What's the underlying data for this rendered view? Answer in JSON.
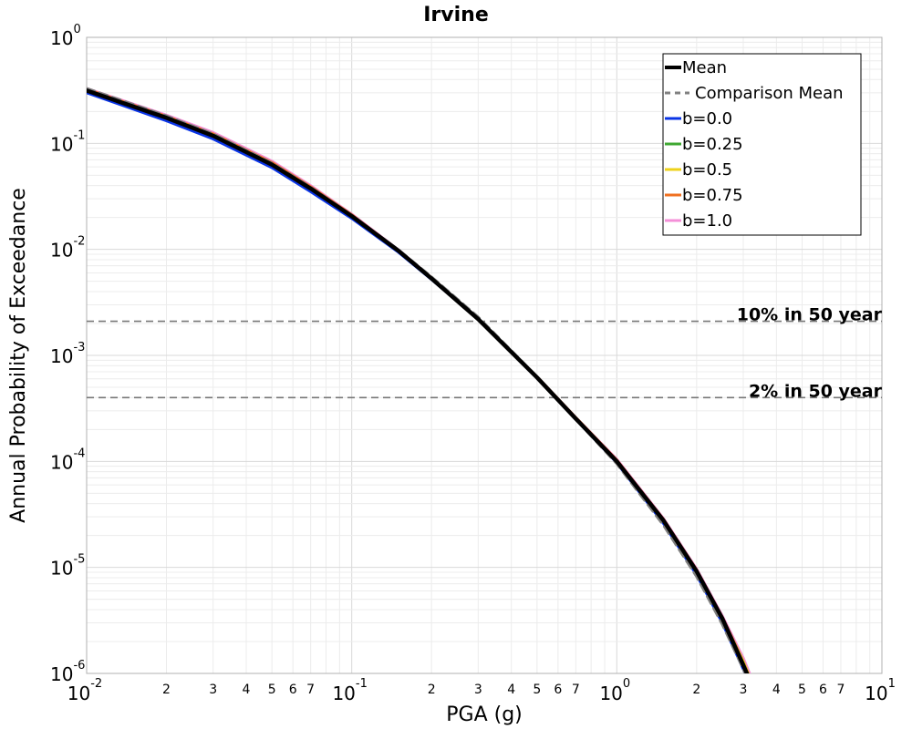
{
  "chart_data": {
    "type": "line",
    "title": "Irvine",
    "xlabel": "PGA (g)",
    "ylabel": "Annual Probability of Exceedance",
    "x_scale": "log",
    "y_scale": "log",
    "xlim": [
      0.01,
      10
    ],
    "ylim": [
      1e-06,
      1
    ],
    "grid": true,
    "legend_position": "top-right",
    "x_tick_labels": [
      {
        "value": 0.01,
        "base": "10",
        "exp": "-2"
      },
      {
        "value": 0.1,
        "base": "10",
        "exp": "-1"
      },
      {
        "value": 1,
        "base": "10",
        "exp": "0"
      },
      {
        "value": 10,
        "base": "10",
        "exp": "1"
      }
    ],
    "x_minor_labels": [
      "2",
      "3",
      "4",
      "5",
      "6",
      "7"
    ],
    "y_tick_labels": [
      {
        "value": 1,
        "base": "10",
        "exp": "0"
      },
      {
        "value": 0.1,
        "base": "10",
        "exp": "-1"
      },
      {
        "value": 0.01,
        "base": "10",
        "exp": "-2"
      },
      {
        "value": 0.001,
        "base": "10",
        "exp": "-3"
      },
      {
        "value": 0.0001,
        "base": "10",
        "exp": "-4"
      },
      {
        "value": 1e-05,
        "base": "10",
        "exp": "-5"
      },
      {
        "value": 1e-06,
        "base": "10",
        "exp": "-6"
      }
    ],
    "reference_lines": [
      {
        "label": "10% in 50 year",
        "y": 0.0021,
        "color": "#777777"
      },
      {
        "label": "2% in 50 year",
        "y": 0.0004,
        "color": "#777777"
      }
    ],
    "series": [
      {
        "name": "b=1.0",
        "color": "#f48fd8",
        "dash": "solid",
        "x": [
          0.01,
          0.02,
          0.03,
          0.05,
          0.07,
          0.1,
          0.15,
          0.2,
          0.3,
          0.5,
          0.7,
          1,
          1.5,
          2,
          2.5,
          3,
          3.4
        ],
        "y": [
          0.33,
          0.185,
          0.127,
          0.068,
          0.04,
          0.0215,
          0.0099,
          0.0054,
          0.0022,
          0.00063,
          0.00026,
          0.000105,
          2.9e-05,
          9.7e-06,
          3.5e-06,
          1.4e-06,
          6.5e-07
        ]
      },
      {
        "name": "b=0.75",
        "color": "#f07020",
        "dash": "solid",
        "x": [
          0.01,
          0.02,
          0.03,
          0.05,
          0.07,
          0.1,
          0.15,
          0.2,
          0.3,
          0.5,
          0.7,
          1,
          1.5,
          2,
          2.5,
          3,
          3.4
        ],
        "y": [
          0.325,
          0.18,
          0.123,
          0.066,
          0.039,
          0.0212,
          0.0098,
          0.0054,
          0.0022,
          0.00063,
          0.00026,
          0.000103,
          2.85e-05,
          9.5e-06,
          3.4e-06,
          1.3e-06,
          6e-07
        ]
      },
      {
        "name": "b=0.5",
        "color": "#eed21a",
        "dash": "solid",
        "x": [
          0.01,
          0.02,
          0.03,
          0.05,
          0.07,
          0.1,
          0.15,
          0.2,
          0.3,
          0.5,
          0.7,
          1,
          1.5,
          2,
          2.5,
          3,
          3.4
        ],
        "y": [
          0.32,
          0.177,
          0.12,
          0.064,
          0.038,
          0.0208,
          0.0097,
          0.0053,
          0.0022,
          0.00062,
          0.000255,
          0.0001,
          2.8e-05,
          9.3e-06,
          3.3e-06,
          1.3e-06,
          6e-07
        ]
      },
      {
        "name": "b=0.25",
        "color": "#3fa832",
        "dash": "solid",
        "x": [
          0.01,
          0.02,
          0.03,
          0.05,
          0.07,
          0.1,
          0.15,
          0.2,
          0.3,
          0.5,
          0.7,
          1,
          1.5,
          2,
          2.5,
          3,
          3.4
        ],
        "y": [
          0.31,
          0.172,
          0.116,
          0.062,
          0.037,
          0.0204,
          0.0096,
          0.0053,
          0.0022,
          0.00062,
          0.00025,
          9.9e-05,
          2.75e-05,
          9.1e-06,
          3.2e-06,
          1.2e-06,
          5.8e-07
        ]
      },
      {
        "name": "b=0.0",
        "color": "#0a34e6",
        "dash": "solid",
        "x": [
          0.01,
          0.02,
          0.03,
          0.05,
          0.07,
          0.1,
          0.15,
          0.2,
          0.3,
          0.5,
          0.7,
          1,
          1.5,
          2,
          2.5,
          3,
          3.4
        ],
        "y": [
          0.3,
          0.163,
          0.11,
          0.059,
          0.035,
          0.0196,
          0.0094,
          0.0052,
          0.0022,
          0.00061,
          0.00025,
          9.7e-05,
          2.6e-05,
          8.5e-06,
          3e-06,
          1.1e-06,
          5.2e-07
        ]
      },
      {
        "name": "Comparison Mean",
        "color": "#808080",
        "dash": "dashed",
        "x": [
          0.01,
          0.02,
          0.03,
          0.05,
          0.07,
          0.1,
          0.15,
          0.2,
          0.3,
          0.5,
          0.7,
          1,
          1.5,
          2,
          2.5,
          3,
          3.4
        ],
        "y": [
          0.33,
          0.182,
          0.123,
          0.065,
          0.0385,
          0.021,
          0.0099,
          0.0055,
          0.0023,
          0.00063,
          0.00025,
          9.5e-05,
          2.5e-05,
          8.2e-06,
          2.9e-06,
          1.1e-06,
          5.2e-07
        ]
      },
      {
        "name": "Mean",
        "color": "#000000",
        "dash": "solid",
        "x": [
          0.01,
          0.02,
          0.03,
          0.05,
          0.07,
          0.1,
          0.15,
          0.2,
          0.3,
          0.5,
          0.7,
          1,
          1.5,
          2,
          2.5,
          3,
          3.4
        ],
        "y": [
          0.315,
          0.174,
          0.118,
          0.063,
          0.0375,
          0.0206,
          0.0097,
          0.0053,
          0.0022,
          0.00062,
          0.000253,
          0.0001,
          2.77e-05,
          9.2e-06,
          3.3e-06,
          1.2e-06,
          5.8e-07
        ]
      }
    ],
    "legend": [
      {
        "name": "Mean",
        "color": "#000000",
        "dash": "solid"
      },
      {
        "name": "Comparison Mean",
        "color": "#808080",
        "dash": "dashed"
      },
      {
        "name": "b=0.0",
        "color": "#0a34e6",
        "dash": "solid"
      },
      {
        "name": "b=0.25",
        "color": "#3fa832",
        "dash": "solid"
      },
      {
        "name": "b=0.5",
        "color": "#eed21a",
        "dash": "solid"
      },
      {
        "name": "b=0.75",
        "color": "#f07020",
        "dash": "solid"
      },
      {
        "name": "b=1.0",
        "color": "#f48fd8",
        "dash": "solid"
      }
    ]
  }
}
